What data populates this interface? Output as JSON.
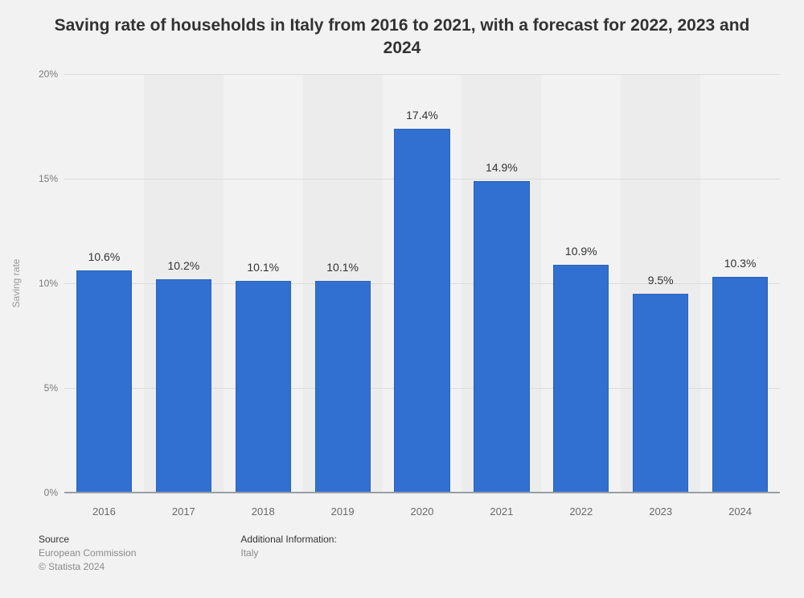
{
  "title": "Saving rate of households in Italy from 2016 to 2021, with a forecast for 2022, 2023 and 2024",
  "chart": {
    "type": "bar",
    "categories": [
      "2016",
      "2017",
      "2018",
      "2019",
      "2020",
      "2021",
      "2022",
      "2023",
      "2024"
    ],
    "values": [
      10.6,
      10.2,
      10.1,
      10.1,
      17.4,
      14.9,
      10.9,
      9.5,
      10.3
    ],
    "value_labels": [
      "10.6%",
      "10.2%",
      "10.1%",
      "10.1%",
      "17.4%",
      "14.9%",
      "10.9%",
      "9.5%",
      "10.3%"
    ],
    "bar_color": "#3170d0",
    "bar_border": "#2a63ba",
    "bar_width": 0.7,
    "ylim": [
      0,
      20
    ],
    "ytick_step": 5,
    "ytick_labels": [
      "0%",
      "5%",
      "10%",
      "15%",
      "20%"
    ],
    "ylabel": "Saving rate",
    "background_color": "#f2f2f2",
    "alt_band_color": "rgba(0,0,0,0.025)",
    "grid_color": "#dcdcdc",
    "baseline_color": "#989FA6",
    "title_fontsize": 21,
    "label_fontsize": 14,
    "tick_fontsize": 13
  },
  "footer": {
    "source_head": "Source",
    "source_body": "European Commission",
    "copyright": "© Statista 2024",
    "info_head": "Additional Information:",
    "info_body": "Italy"
  }
}
